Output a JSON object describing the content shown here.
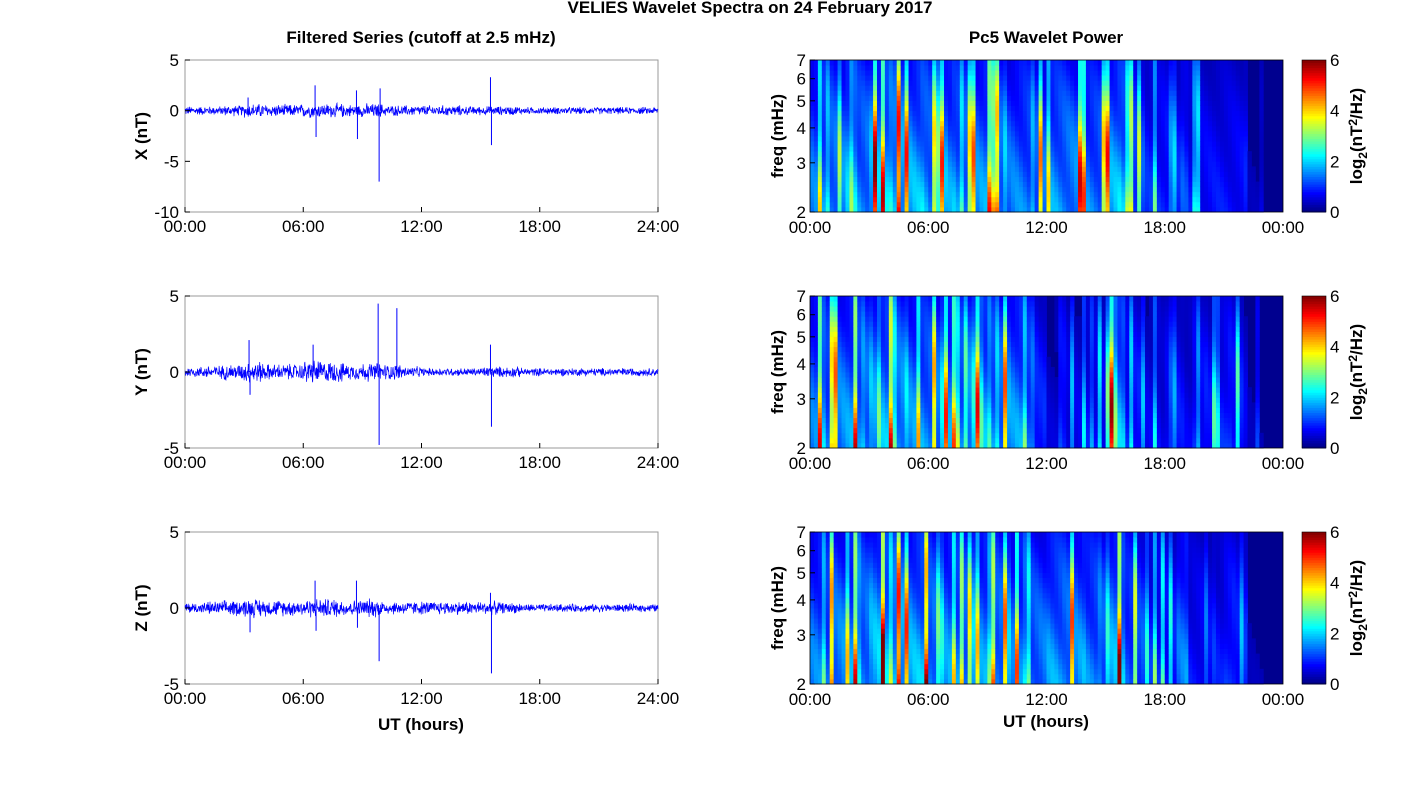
{
  "chart_data": {
    "title": "VELIES Wavelet Spectra on 24 February 2017",
    "left_title": "Filtered Series (cutoff at 2.5 mHz)",
    "right_title": "Pc5 Wavelet Power",
    "xlabel": "UT (hours)",
    "series_color": "#0000ff",
    "panels": [
      {
        "type": "line",
        "ylabel": "X (nT)",
        "ylim": [
          -10,
          5
        ],
        "yticks": [
          "5",
          "0",
          "-5",
          "-10"
        ],
        "ytick_values": [
          5,
          0,
          -5,
          -10
        ],
        "noise_amplitude_by_hour": [
          0.5,
          0.5,
          0.6,
          0.8,
          0.7,
          0.7,
          0.8,
          0.8,
          0.7,
          0.8,
          0.6,
          0.6,
          0.6,
          0.6,
          0.5,
          0.5,
          0.5,
          0.4,
          0.4,
          0.4,
          0.4,
          0.4,
          0.4,
          0.4
        ],
        "spikes": [
          [
            3.2,
            1.3
          ],
          [
            6.6,
            2.5
          ],
          [
            6.65,
            -2.6
          ],
          [
            8.7,
            2
          ],
          [
            8.75,
            -2.8
          ],
          [
            9.85,
            -7
          ],
          [
            9.9,
            2.2
          ],
          [
            15.5,
            3.3
          ],
          [
            15.55,
            -3.4
          ]
        ]
      },
      {
        "type": "line",
        "ylabel": "Y (nT)",
        "ylim": [
          -5,
          5
        ],
        "yticks": [
          "5",
          "0",
          "-5"
        ],
        "ytick_values": [
          5,
          0,
          -5
        ],
        "noise_amplitude_by_hour": [
          0.4,
          0.5,
          0.6,
          0.8,
          0.6,
          0.6,
          0.9,
          0.8,
          0.6,
          0.7,
          0.6,
          0.4,
          0.3,
          0.3,
          0.3,
          0.4,
          0.4,
          0.3,
          0.3,
          0.3,
          0.3,
          0.3,
          0.3,
          0.3
        ],
        "spikes": [
          [
            3.25,
            2.1
          ],
          [
            3.3,
            -1.5
          ],
          [
            6.5,
            1.8
          ],
          [
            9.8,
            4.5
          ],
          [
            9.85,
            -4.8
          ],
          [
            10.75,
            4.2
          ],
          [
            15.5,
            1.8
          ],
          [
            15.55,
            -3.6
          ]
        ]
      },
      {
        "type": "line",
        "ylabel": "Z (nT)",
        "ylim": [
          -5,
          5
        ],
        "yticks": [
          "5",
          "0",
          "-5"
        ],
        "ytick_values": [
          5,
          0,
          -5
        ],
        "noise_amplitude_by_hour": [
          0.4,
          0.5,
          0.6,
          0.7,
          0.6,
          0.6,
          0.7,
          0.7,
          0.6,
          0.7,
          0.5,
          0.5,
          0.5,
          0.5,
          0.5,
          0.5,
          0.4,
          0.3,
          0.3,
          0.3,
          0.3,
          0.3,
          0.3,
          0.3
        ],
        "spikes": [
          [
            3.3,
            -1.6
          ],
          [
            6.6,
            1.8
          ],
          [
            6.65,
            -1.5
          ],
          [
            8.7,
            1.8
          ],
          [
            8.75,
            -1.3
          ],
          [
            9.85,
            -3.5
          ],
          [
            15.5,
            1.0
          ],
          [
            15.55,
            -4.3
          ]
        ]
      }
    ],
    "spectra": [
      {
        "type": "heatmap",
        "ylabel": "freq (mHz)",
        "ylim": [
          2,
          7
        ],
        "yticks": [
          "7",
          "6",
          "5",
          "4",
          "3",
          "2"
        ],
        "ytick_values": [
          7,
          6,
          5,
          4,
          3,
          2
        ],
        "power_by_hour": [
          4.5,
          5,
          5,
          6,
          6,
          5.5,
          5,
          5,
          5,
          5,
          4.5,
          4.5,
          5,
          5,
          4.5,
          5.5,
          4,
          3,
          3,
          2.5,
          2.5,
          2.5,
          1,
          0
        ]
      },
      {
        "type": "heatmap",
        "ylabel": "freq (mHz)",
        "ylim": [
          2,
          7
        ],
        "yticks": [
          "7",
          "6",
          "5",
          "4",
          "3",
          "2"
        ],
        "ytick_values": [
          7,
          6,
          5,
          4,
          3,
          2
        ],
        "power_by_hour": [
          4.5,
          5,
          5,
          5.5,
          5.5,
          5,
          5,
          5,
          5,
          5,
          5,
          3,
          1.5,
          2,
          2.5,
          5.5,
          3,
          2,
          2.5,
          2,
          2.5,
          3,
          1,
          0
        ]
      },
      {
        "type": "heatmap",
        "ylabel": "freq (mHz)",
        "ylim": [
          2,
          7
        ],
        "yticks": [
          "7",
          "6",
          "5",
          "4",
          "3",
          "2"
        ],
        "ytick_values": [
          7,
          6,
          5,
          4,
          3,
          2
        ],
        "power_by_hour": [
          4.5,
          5,
          5,
          6,
          6,
          5.5,
          5,
          5,
          5,
          5,
          4.5,
          4.5,
          5,
          5,
          4.5,
          5.5,
          4,
          3,
          3,
          2.5,
          2.5,
          3,
          1,
          0
        ]
      }
    ],
    "xticks_left": [
      "00:00",
      "06:00",
      "12:00",
      "18:00",
      "24:00"
    ],
    "xticks_right": [
      "00:00",
      "06:00",
      "12:00",
      "18:00",
      "00:00"
    ],
    "xtick_hours": [
      0,
      6,
      12,
      18,
      24
    ],
    "colorbar": {
      "label": "log2(nT2/Hz)",
      "label_main": "log",
      "label_sub": "2",
      "label_rest": "(nT",
      "label_sup": "2",
      "label_end": "/Hz)",
      "ticks": [
        "6",
        "4",
        "2",
        "0"
      ],
      "tick_values": [
        6,
        4,
        2,
        0
      ],
      "range": [
        0,
        6
      ],
      "colormap": "jet"
    }
  }
}
